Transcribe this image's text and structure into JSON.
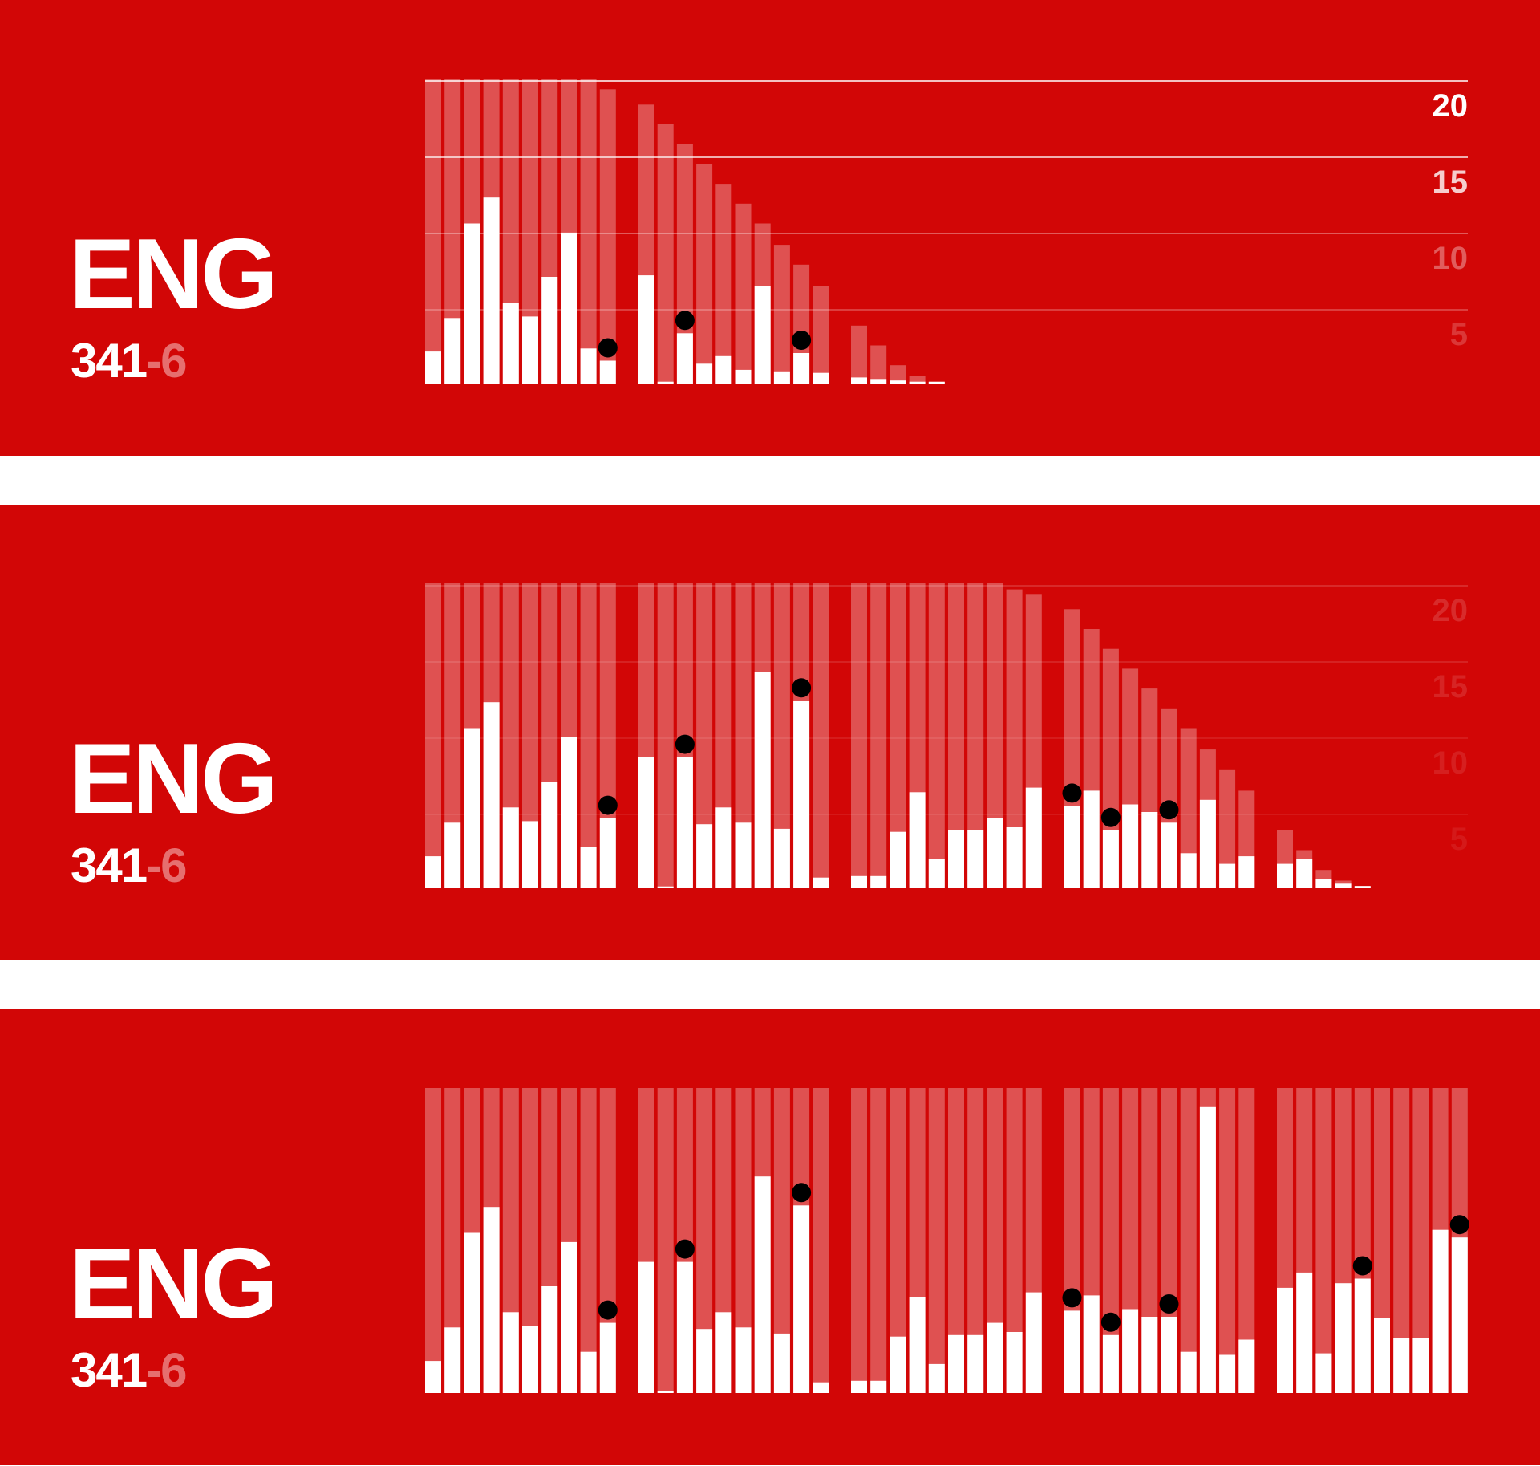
{
  "colors": {
    "background": "#d20606",
    "bar": "#ffffff",
    "total_bar": "rgba(255,255,255,0.3)",
    "wicket": "#000000",
    "separator": "#ffffff"
  },
  "chart_data": [
    {
      "type": "bar",
      "team": "ENG",
      "score": {
        "runs": "341",
        "wickets": "-6"
      },
      "ylim": [
        0,
        20
      ],
      "yticks": [
        "20",
        "15",
        "10",
        "5"
      ],
      "innings": [
        {
          "overs": [
            {
              "runs": 2.1,
              "total": 20,
              "wicket": false
            },
            {
              "runs": 4.3,
              "total": 20,
              "wicket": false
            },
            {
              "runs": 10.5,
              "total": 20,
              "wicket": false
            },
            {
              "runs": 12.2,
              "total": 20,
              "wicket": false
            },
            {
              "runs": 5.3,
              "total": 20,
              "wicket": false
            },
            {
              "runs": 4.4,
              "total": 20,
              "wicket": false
            },
            {
              "runs": 7.0,
              "total": 20,
              "wicket": false
            },
            {
              "runs": 9.9,
              "total": 20,
              "wicket": false
            },
            {
              "runs": 2.3,
              "total": 20,
              "wicket": false
            },
            {
              "runs": 1.5,
              "total": 19.3,
              "wicket": true
            }
          ]
        },
        {
          "overs": [
            {
              "runs": 7.1,
              "total": 18.3,
              "wicket": false
            },
            {
              "runs": 0,
              "total": 17.0,
              "wicket": false
            },
            {
              "runs": 3.3,
              "total": 15.7,
              "wicket": true
            },
            {
              "runs": 1.3,
              "total": 14.4,
              "wicket": false
            },
            {
              "runs": 1.8,
              "total": 13.1,
              "wicket": false
            },
            {
              "runs": 0.9,
              "total": 11.8,
              "wicket": false
            },
            {
              "runs": 6.4,
              "total": 10.5,
              "wicket": false
            },
            {
              "runs": 0.8,
              "total": 9.1,
              "wicket": false
            },
            {
              "runs": 2.0,
              "total": 7.8,
              "wicket": true
            },
            {
              "runs": 0.7,
              "total": 6.4,
              "wicket": false
            }
          ]
        },
        {
          "overs": [
            {
              "runs": 0.4,
              "total": 3.8,
              "wicket": false
            },
            {
              "runs": 0.3,
              "total": 2.5,
              "wicket": false
            },
            {
              "runs": 0.2,
              "total": 1.2,
              "wicket": false
            },
            {
              "runs": 0.1,
              "total": 0.5,
              "wicket": false
            },
            {
              "runs": 0,
              "total": 0.1,
              "wicket": false
            }
          ]
        }
      ]
    },
    {
      "type": "bar",
      "team": "ENG",
      "score": {
        "runs": "341",
        "wickets": "-6"
      },
      "ylim": [
        0,
        20
      ],
      "yticks": [
        "20",
        "15",
        "10",
        "5"
      ],
      "innings": [
        {
          "overs": [
            {
              "runs": 2.1,
              "total": 20,
              "wicket": false
            },
            {
              "runs": 4.3,
              "total": 20,
              "wicket": false
            },
            {
              "runs": 10.5,
              "total": 20,
              "wicket": false
            },
            {
              "runs": 12.2,
              "total": 20,
              "wicket": false
            },
            {
              "runs": 5.3,
              "total": 20,
              "wicket": false
            },
            {
              "runs": 4.4,
              "total": 20,
              "wicket": false
            },
            {
              "runs": 7.0,
              "total": 20,
              "wicket": false
            },
            {
              "runs": 9.9,
              "total": 20,
              "wicket": false
            },
            {
              "runs": 2.7,
              "total": 20,
              "wicket": false
            },
            {
              "runs": 4.6,
              "total": 20,
              "wicket": true
            }
          ]
        },
        {
          "overs": [
            {
              "runs": 8.6,
              "total": 20,
              "wicket": false
            },
            {
              "runs": 0,
              "total": 20,
              "wicket": false
            },
            {
              "runs": 8.6,
              "total": 20,
              "wicket": true
            },
            {
              "runs": 4.2,
              "total": 20,
              "wicket": false
            },
            {
              "runs": 5.3,
              "total": 20,
              "wicket": false
            },
            {
              "runs": 4.3,
              "total": 20,
              "wicket": false
            },
            {
              "runs": 14.2,
              "total": 20,
              "wicket": false
            },
            {
              "runs": 3.9,
              "total": 20,
              "wicket": false
            },
            {
              "runs": 12.3,
              "total": 20,
              "wicket": true
            },
            {
              "runs": 0.7,
              "total": 20,
              "wicket": false
            }
          ]
        },
        {
          "overs": [
            {
              "runs": 0.8,
              "total": 20,
              "wicket": false
            },
            {
              "runs": 0.8,
              "total": 20,
              "wicket": false
            },
            {
              "runs": 3.7,
              "total": 20,
              "wicket": false
            },
            {
              "runs": 6.3,
              "total": 20,
              "wicket": false
            },
            {
              "runs": 1.9,
              "total": 20,
              "wicket": false
            },
            {
              "runs": 3.8,
              "total": 20,
              "wicket": false
            },
            {
              "runs": 3.8,
              "total": 20,
              "wicket": false
            },
            {
              "runs": 4.6,
              "total": 20,
              "wicket": false
            },
            {
              "runs": 4.0,
              "total": 19.6,
              "wicket": false
            },
            {
              "runs": 6.6,
              "total": 19.3,
              "wicket": false
            }
          ]
        },
        {
          "overs": [
            {
              "runs": 5.4,
              "total": 18.3,
              "wicket": true
            },
            {
              "runs": 6.4,
              "total": 17.0,
              "wicket": false
            },
            {
              "runs": 3.8,
              "total": 15.7,
              "wicket": true
            },
            {
              "runs": 5.5,
              "total": 14.4,
              "wicket": false
            },
            {
              "runs": 5.0,
              "total": 13.1,
              "wicket": false
            },
            {
              "runs": 4.3,
              "total": 11.8,
              "wicket": true
            },
            {
              "runs": 2.3,
              "total": 10.5,
              "wicket": false
            },
            {
              "runs": 5.8,
              "total": 9.1,
              "wicket": false
            },
            {
              "runs": 1.6,
              "total": 7.8,
              "wicket": false
            },
            {
              "runs": 2.1,
              "total": 6.4,
              "wicket": false
            }
          ]
        },
        {
          "overs": [
            {
              "runs": 1.6,
              "total": 3.8,
              "wicket": false
            },
            {
              "runs": 1.9,
              "total": 2.5,
              "wicket": false
            },
            {
              "runs": 0.6,
              "total": 1.2,
              "wicket": false
            },
            {
              "runs": 0.3,
              "total": 0.5,
              "wicket": false
            },
            {
              "runs": 0.15,
              "total": 0.1,
              "wicket": false
            }
          ]
        }
      ]
    },
    {
      "type": "bar",
      "team": "ENG",
      "score": {
        "runs": "341",
        "wickets": "-6"
      },
      "ylim": [
        0,
        20
      ],
      "yticks": [],
      "innings": [
        {
          "overs": [
            {
              "runs": 2.1,
              "total": 20,
              "wicket": false
            },
            {
              "runs": 4.3,
              "total": 20,
              "wicket": false
            },
            {
              "runs": 10.5,
              "total": 20,
              "wicket": false
            },
            {
              "runs": 12.2,
              "total": 20,
              "wicket": false
            },
            {
              "runs": 5.3,
              "total": 20,
              "wicket": false
            },
            {
              "runs": 4.4,
              "total": 20,
              "wicket": false
            },
            {
              "runs": 7.0,
              "total": 20,
              "wicket": false
            },
            {
              "runs": 9.9,
              "total": 20,
              "wicket": false
            },
            {
              "runs": 2.7,
              "total": 20,
              "wicket": false
            },
            {
              "runs": 4.6,
              "total": 20,
              "wicket": true
            }
          ]
        },
        {
          "overs": [
            {
              "runs": 8.6,
              "total": 20,
              "wicket": false
            },
            {
              "runs": 0,
              "total": 20,
              "wicket": false
            },
            {
              "runs": 8.6,
              "total": 20,
              "wicket": true
            },
            {
              "runs": 4.2,
              "total": 20,
              "wicket": false
            },
            {
              "runs": 5.3,
              "total": 20,
              "wicket": false
            },
            {
              "runs": 4.3,
              "total": 20,
              "wicket": false
            },
            {
              "runs": 14.2,
              "total": 20,
              "wicket": false
            },
            {
              "runs": 3.9,
              "total": 20,
              "wicket": false
            },
            {
              "runs": 12.3,
              "total": 20,
              "wicket": true
            },
            {
              "runs": 0.7,
              "total": 20,
              "wicket": false
            }
          ]
        },
        {
          "overs": [
            {
              "runs": 0.8,
              "total": 20,
              "wicket": false
            },
            {
              "runs": 0.8,
              "total": 20,
              "wicket": false
            },
            {
              "runs": 3.7,
              "total": 20,
              "wicket": false
            },
            {
              "runs": 6.3,
              "total": 20,
              "wicket": false
            },
            {
              "runs": 1.9,
              "total": 20,
              "wicket": false
            },
            {
              "runs": 3.8,
              "total": 20,
              "wicket": false
            },
            {
              "runs": 3.8,
              "total": 20,
              "wicket": false
            },
            {
              "runs": 4.6,
              "total": 20,
              "wicket": false
            },
            {
              "runs": 4.0,
              "total": 20,
              "wicket": false
            },
            {
              "runs": 6.6,
              "total": 20,
              "wicket": false
            }
          ]
        },
        {
          "overs": [
            {
              "runs": 5.4,
              "total": 20,
              "wicket": true
            },
            {
              "runs": 6.4,
              "total": 20,
              "wicket": false
            },
            {
              "runs": 3.8,
              "total": 20,
              "wicket": true
            },
            {
              "runs": 5.5,
              "total": 20,
              "wicket": false
            },
            {
              "runs": 5.0,
              "total": 20,
              "wicket": false
            },
            {
              "runs": 5.0,
              "total": 20,
              "wicket": true
            },
            {
              "runs": 2.7,
              "total": 20,
              "wicket": false
            },
            {
              "runs": 18.8,
              "total": 20,
              "wicket": false
            },
            {
              "runs": 2.5,
              "total": 20,
              "wicket": false
            },
            {
              "runs": 3.5,
              "total": 20,
              "wicket": false
            }
          ]
        },
        {
          "overs": [
            {
              "runs": 6.9,
              "total": 20,
              "wicket": false
            },
            {
              "runs": 7.9,
              "total": 20,
              "wicket": false
            },
            {
              "runs": 2.6,
              "total": 20,
              "wicket": false
            },
            {
              "runs": 7.2,
              "total": 20,
              "wicket": false
            },
            {
              "runs": 7.5,
              "total": 20,
              "wicket": true
            },
            {
              "runs": 4.9,
              "total": 20,
              "wicket": false
            },
            {
              "runs": 3.6,
              "total": 20,
              "wicket": false
            },
            {
              "runs": 3.6,
              "total": 20,
              "wicket": false
            },
            {
              "runs": 10.7,
              "total": 20,
              "wicket": false
            },
            {
              "runs": 10.2,
              "total": 20,
              "wicket": true
            }
          ]
        }
      ]
    }
  ]
}
